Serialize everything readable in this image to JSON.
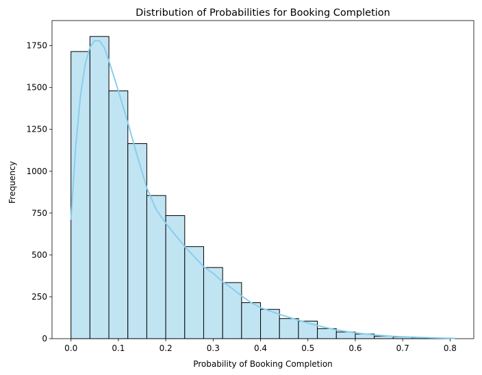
{
  "chart_data": {
    "type": "bar",
    "title": "Distribution of Probabilities for Booking Completion",
    "xlabel": "Probability of Booking Completion",
    "ylabel": "Frequency",
    "xlim": [
      -0.04,
      0.85
    ],
    "ylim": [
      0,
      1900
    ],
    "xticks": [
      0.0,
      0.1,
      0.2,
      0.3,
      0.4,
      0.5,
      0.6,
      0.7,
      0.8
    ],
    "xtick_labels": [
      "0.0",
      "0.1",
      "0.2",
      "0.3",
      "0.4",
      "0.5",
      "0.6",
      "0.7",
      "0.8"
    ],
    "yticks": [
      0,
      250,
      500,
      750,
      1000,
      1250,
      1500,
      1750
    ],
    "ytick_labels": [
      "0",
      "250",
      "500",
      "750",
      "1000",
      "1250",
      "1500",
      "1750"
    ],
    "bins": [
      {
        "x0": 0.0,
        "x1": 0.04,
        "count": 1715
      },
      {
        "x0": 0.04,
        "x1": 0.08,
        "count": 1805
      },
      {
        "x0": 0.08,
        "x1": 0.12,
        "count": 1480
      },
      {
        "x0": 0.12,
        "x1": 0.16,
        "count": 1165
      },
      {
        "x0": 0.16,
        "x1": 0.2,
        "count": 855
      },
      {
        "x0": 0.2,
        "x1": 0.24,
        "count": 735
      },
      {
        "x0": 0.24,
        "x1": 0.28,
        "count": 550
      },
      {
        "x0": 0.28,
        "x1": 0.32,
        "count": 425
      },
      {
        "x0": 0.32,
        "x1": 0.36,
        "count": 335
      },
      {
        "x0": 0.36,
        "x1": 0.4,
        "count": 215
      },
      {
        "x0": 0.4,
        "x1": 0.44,
        "count": 175
      },
      {
        "x0": 0.44,
        "x1": 0.48,
        "count": 120
      },
      {
        "x0": 0.48,
        "x1": 0.52,
        "count": 105
      },
      {
        "x0": 0.52,
        "x1": 0.56,
        "count": 60
      },
      {
        "x0": 0.56,
        "x1": 0.6,
        "count": 40
      },
      {
        "x0": 0.6,
        "x1": 0.64,
        "count": 28
      },
      {
        "x0": 0.64,
        "x1": 0.68,
        "count": 15
      },
      {
        "x0": 0.68,
        "x1": 0.72,
        "count": 10
      },
      {
        "x0": 0.72,
        "x1": 0.76,
        "count": 6
      },
      {
        "x0": 0.76,
        "x1": 0.8,
        "count": 3
      }
    ],
    "kde": {
      "x": [
        0.0,
        0.01,
        0.02,
        0.03,
        0.04,
        0.05,
        0.06,
        0.07,
        0.08,
        0.09,
        0.1,
        0.12,
        0.14,
        0.16,
        0.18,
        0.2,
        0.22,
        0.24,
        0.26,
        0.28,
        0.3,
        0.32,
        0.34,
        0.36,
        0.38,
        0.4,
        0.44,
        0.48,
        0.52,
        0.56,
        0.6,
        0.64,
        0.68,
        0.72,
        0.76,
        0.81
      ],
      "y": [
        710,
        1150,
        1450,
        1640,
        1740,
        1780,
        1780,
        1740,
        1660,
        1570,
        1480,
        1290,
        1090,
        900,
        770,
        690,
        620,
        550,
        490,
        430,
        390,
        340,
        300,
        255,
        215,
        185,
        145,
        110,
        78,
        52,
        35,
        22,
        14,
        9,
        5,
        2
      ]
    },
    "grid": false,
    "legend": "none",
    "colors": {
      "bar_fill": "#c1e4f3",
      "bar_edge": "#000000",
      "kde_line": "#87ceeb"
    }
  }
}
